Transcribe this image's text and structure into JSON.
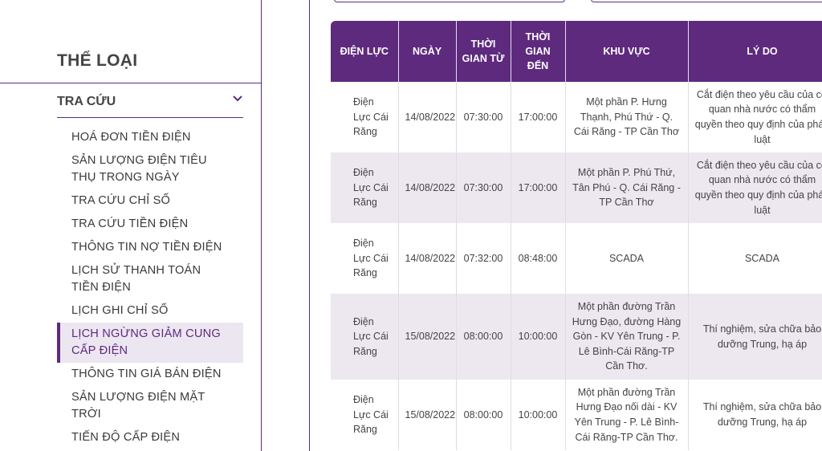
{
  "sidebar": {
    "category_title": "THỂ LOẠI",
    "lookup": {
      "label": "TRA CỨU",
      "icon": "chevron-down-icon"
    },
    "items": [
      {
        "label": "HOÁ ĐƠN TIỀN ĐIỆN"
      },
      {
        "label": "SẢN LƯỢNG ĐIỆN TIÊU THỤ TRONG NGÀY"
      },
      {
        "label": "TRA CỨU CHỈ SỐ"
      },
      {
        "label": "TRA CỨU TIỀN ĐIỆN"
      },
      {
        "label": "THÔNG TIN NỢ TIỀN ĐIỆN"
      },
      {
        "label": "LỊCH SỬ THANH TOÁN TIỀN ĐIỆN"
      },
      {
        "label": "LỊCH GHI CHỈ SỐ"
      },
      {
        "label": "LỊCH NGỪNG GIẢM CUNG CẤP ĐIỆN",
        "active": true
      },
      {
        "label": "THÔNG TIN GIÁ BÁN ĐIỆN"
      },
      {
        "label": "SẢN LƯỢNG ĐIỆN MẶT TRỜI"
      },
      {
        "label": "TIẾN ĐỘ CẤP ĐIỆN"
      }
    ]
  },
  "table": {
    "headers": [
      "ĐIỆN LỰC",
      "NGÀY",
      "THỜI GIAN TỪ",
      "THỜI GIAN ĐẾN",
      "KHU VỰC",
      "LÝ DO"
    ],
    "rows": [
      [
        "Điện Lực Cái Răng",
        "14/08/2022",
        "07:30:00",
        "17:00:00",
        "Một phần P. Hưng Thạnh, Phú Thứ - Q. Cái Răng - TP Cần Thơ",
        "Cắt điện theo yêu cầu của cơ quan nhà nước có thẩm quyền theo quy định của pháp luật"
      ],
      [
        "Điện Lực Cái Răng",
        "14/08/2022",
        "07:30:00",
        "17:00:00",
        "Một phần P. Phú Thứ, Tân Phú - Q. Cái Răng - TP Cần Thơ",
        "Cắt điện theo yêu cầu của cơ quan nhà nước có thẩm quyền theo quy định của pháp luật"
      ],
      [
        "Điện Lực Cái Răng",
        "14/08/2022",
        "07:32:00",
        "08:48:00",
        "SCADA",
        "SCADA"
      ],
      [
        "Điện Lực Cái Răng",
        "15/08/2022",
        "08:00:00",
        "10:00:00",
        "Một phần đường Trần Hưng Đạo, đường Hàng Gòn - KV Yên Trung - P. Lê Bình-Cái Răng-TP Cần Thơ.",
        "Thí nghiệm, sửa chữa bảo dưỡng Trung, hạ áp"
      ],
      [
        "Điện Lực Cái Răng",
        "15/08/2022",
        "08:00:00",
        "10:00:00",
        "Một phần đường Trần Hưng Đạo nối dài - KV Yên Trung - P. Lê Bình-Cái Răng-TP Cần Thơ.",
        "Thí nghiệm, sửa chữa bảo dưỡng Trung, hạ áp"
      ]
    ]
  },
  "colors": {
    "accent": "#5e2a7e",
    "row_alt": "#ede7f0"
  }
}
